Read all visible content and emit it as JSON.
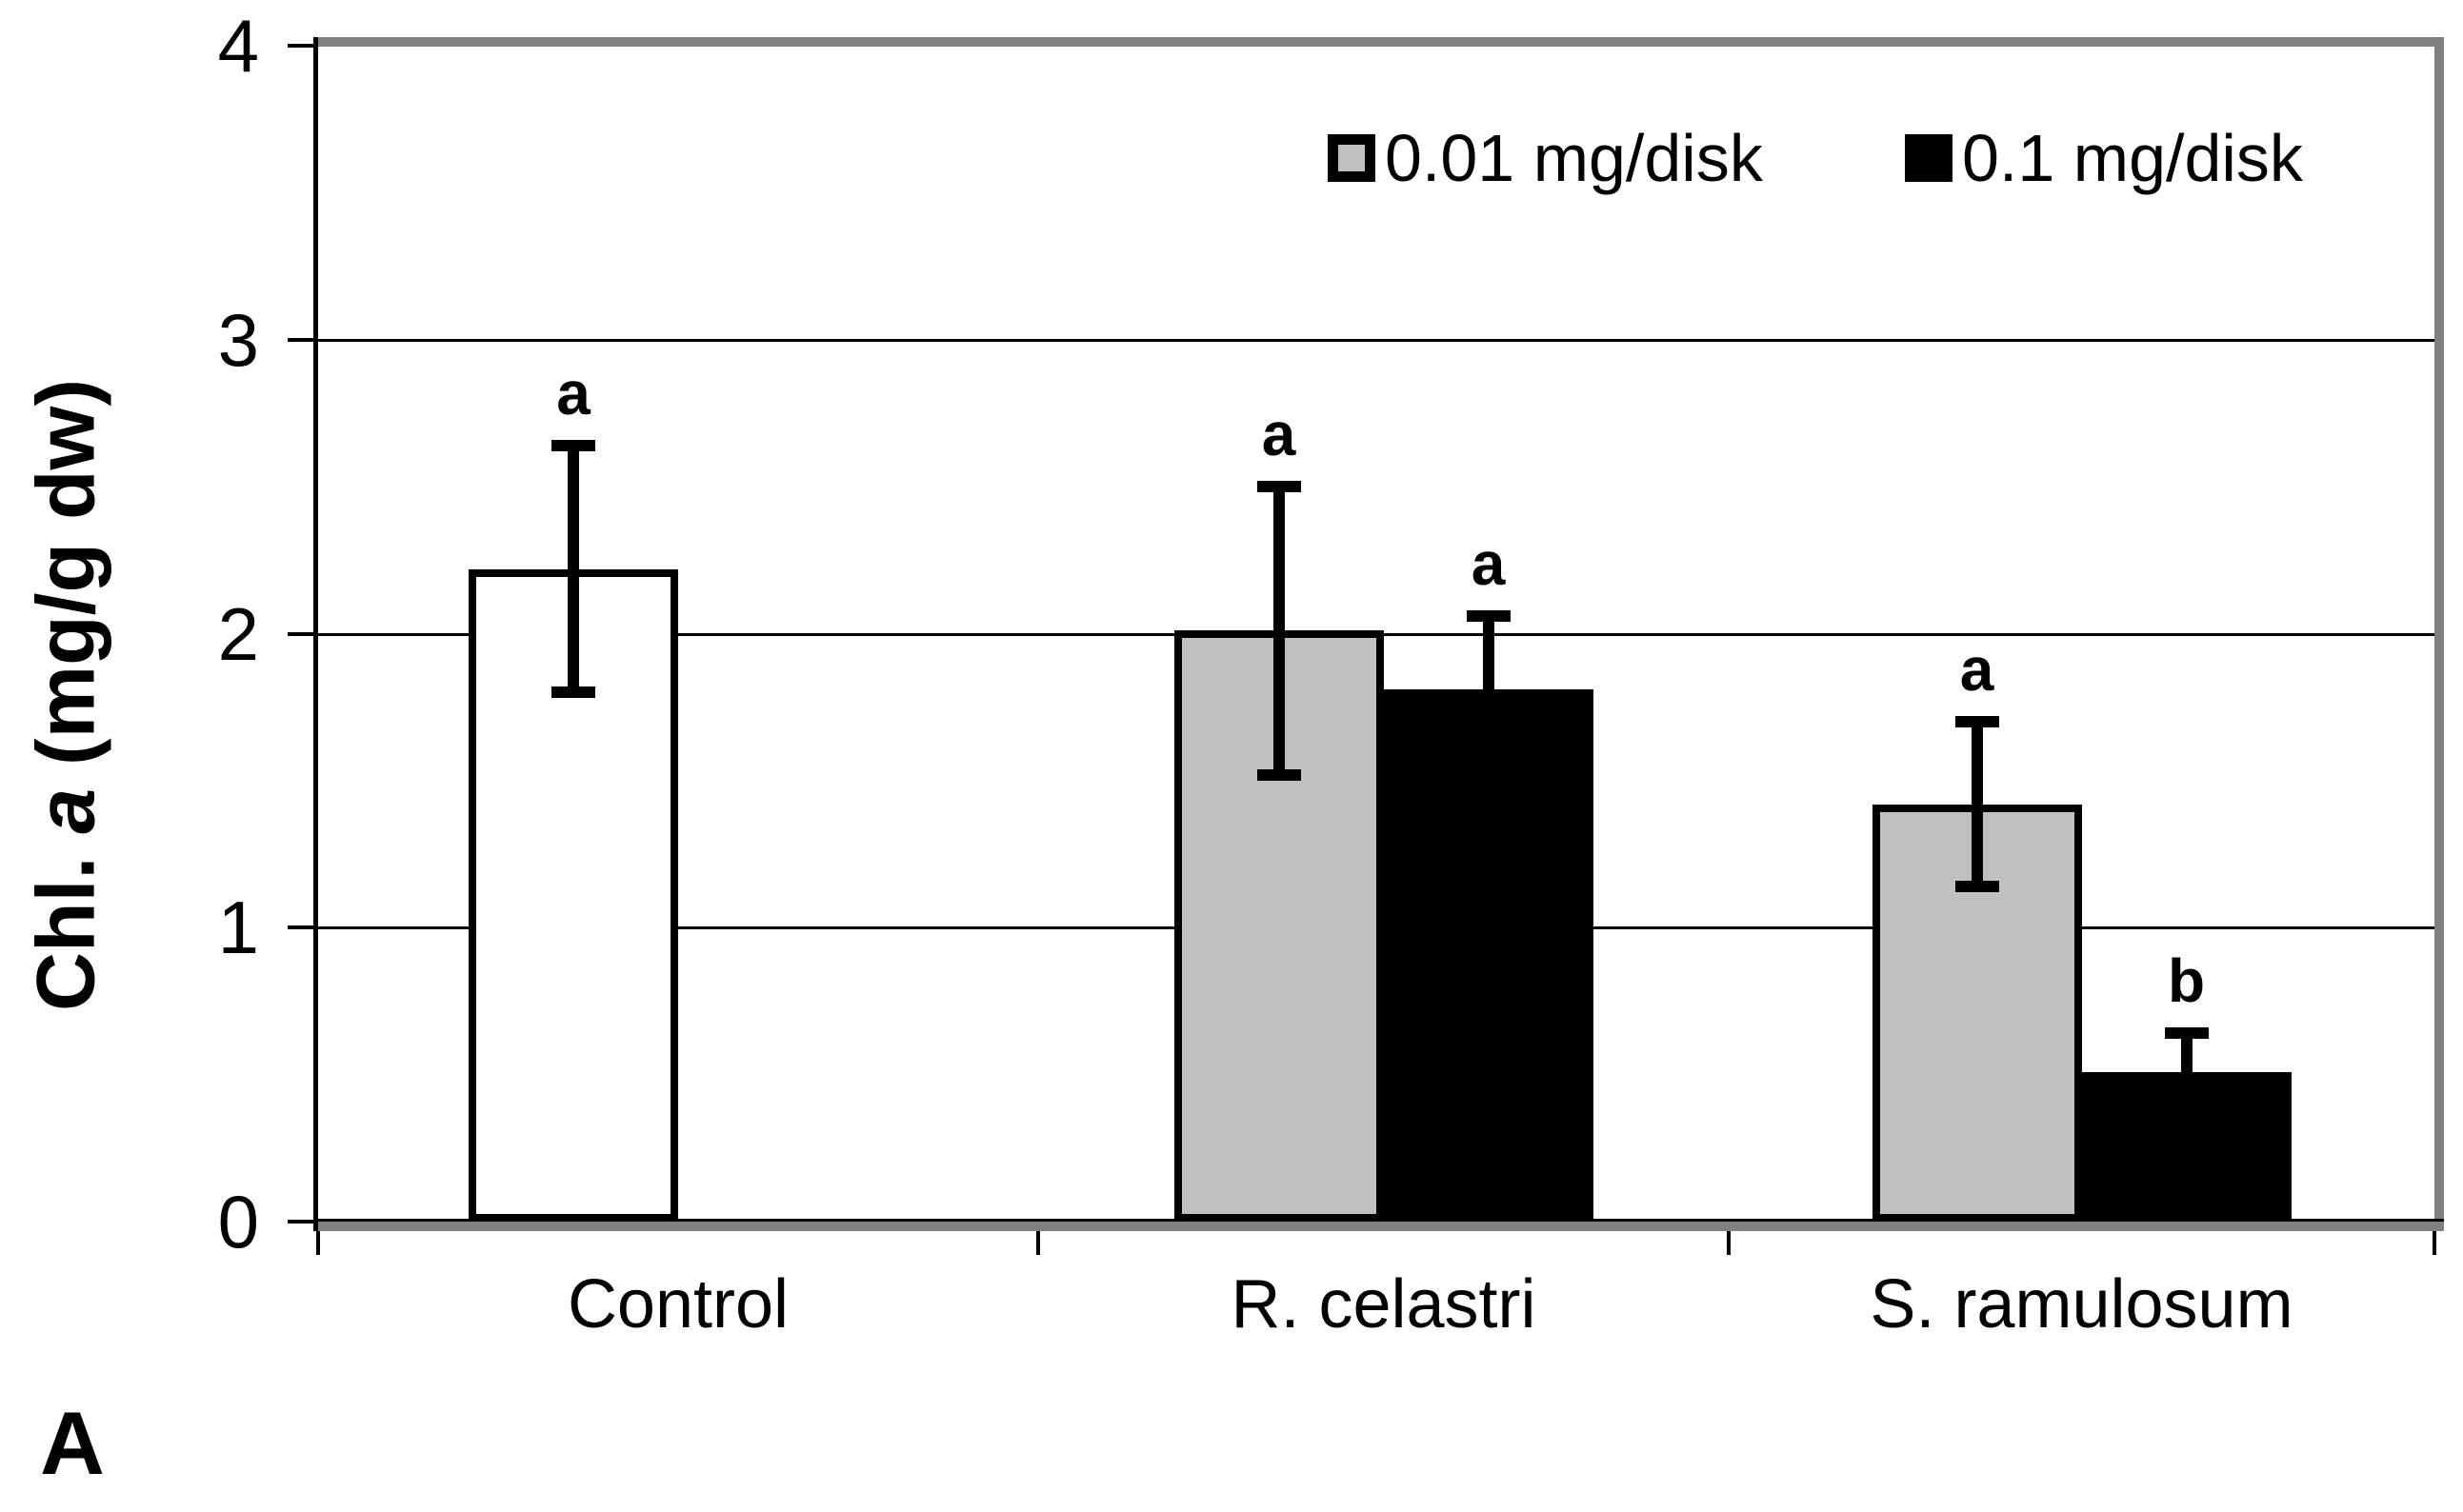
{
  "panel_label": "A",
  "background_color": "#ffffff",
  "frame_color": "#808080",
  "chart_data": {
    "type": "bar",
    "title": "",
    "ylabel_prefix": "Chl. ",
    "ylabel_italic": "a",
    "ylabel_suffix": " (mg/g dw)",
    "ylabel_full": "Chl. a (mg/g dw)",
    "xlabel": "",
    "ylim": [
      0,
      4
    ],
    "yticks": [
      "0",
      "1",
      "2",
      "3",
      "4"
    ],
    "grid": true,
    "legend_position": "top-right-inside",
    "categories": [
      "Control",
      "R. celastri",
      "S. ramulosum"
    ],
    "series": [
      {
        "name": "0.01 mg/disk",
        "color": "#c0c0c0",
        "fills": [
          "#ffffff",
          "#c0c0c0",
          "#c0c0c0"
        ],
        "values": [
          2.22,
          2.01,
          1.42
        ],
        "errors": [
          0.42,
          0.49,
          0.28
        ],
        "letters": [
          "a",
          "a",
          "a"
        ]
      },
      {
        "name": "0.1 mg/disk",
        "color": "#000000",
        "fills": [
          null,
          "#000000",
          "#000000"
        ],
        "values": [
          null,
          1.81,
          0.51
        ],
        "errors": [
          null,
          0.25,
          0.13
        ],
        "letters": [
          null,
          "a",
          "b"
        ]
      }
    ]
  }
}
